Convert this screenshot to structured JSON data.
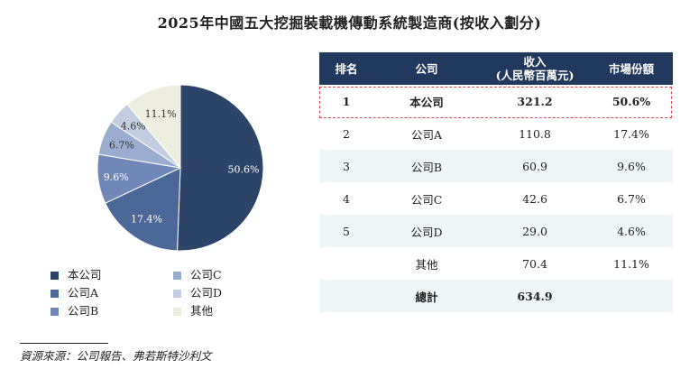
{
  "title": "2025年中國五大挖掘裝載機傳動系統製造商(按收入劃分)",
  "source": "資源來源：公司報告、弗若斯特沙利文",
  "colors": {
    "slices": [
      "#2b4468",
      "#4b6898",
      "#6f88b8",
      "#9aadcf",
      "#c3cde2",
      "#edeee0"
    ],
    "header_bg": "#22395e",
    "row_shade": "#eff6f8",
    "highlight_border": "#e0474f"
  },
  "chart_data": {
    "type": "pie",
    "categories": [
      "本公司",
      "公司A",
      "公司B",
      "公司C",
      "公司D",
      "其他"
    ],
    "values": [
      50.6,
      17.4,
      9.6,
      6.7,
      4.6,
      11.1
    ],
    "labels": [
      "50.6%",
      "17.4%",
      "9.6%",
      "6.7%",
      "4.6%",
      "11.1%"
    ]
  },
  "table": {
    "headers": [
      "排名",
      "公司",
      "收入\n(人民幣百萬元)",
      "市場份額"
    ],
    "rows": [
      [
        "1",
        "本公司",
        "321.2",
        "50.6%"
      ],
      [
        "2",
        "公司A",
        "110.8",
        "17.4%"
      ],
      [
        "3",
        "公司B",
        "60.9",
        "9.6%"
      ],
      [
        "4",
        "公司C",
        "42.6",
        "6.7%"
      ],
      [
        "5",
        "公司D",
        "29.0",
        "4.6%"
      ],
      [
        "",
        "其他",
        "70.4",
        "11.1%"
      ],
      [
        "",
        "總計",
        "634.9",
        ""
      ]
    ]
  }
}
